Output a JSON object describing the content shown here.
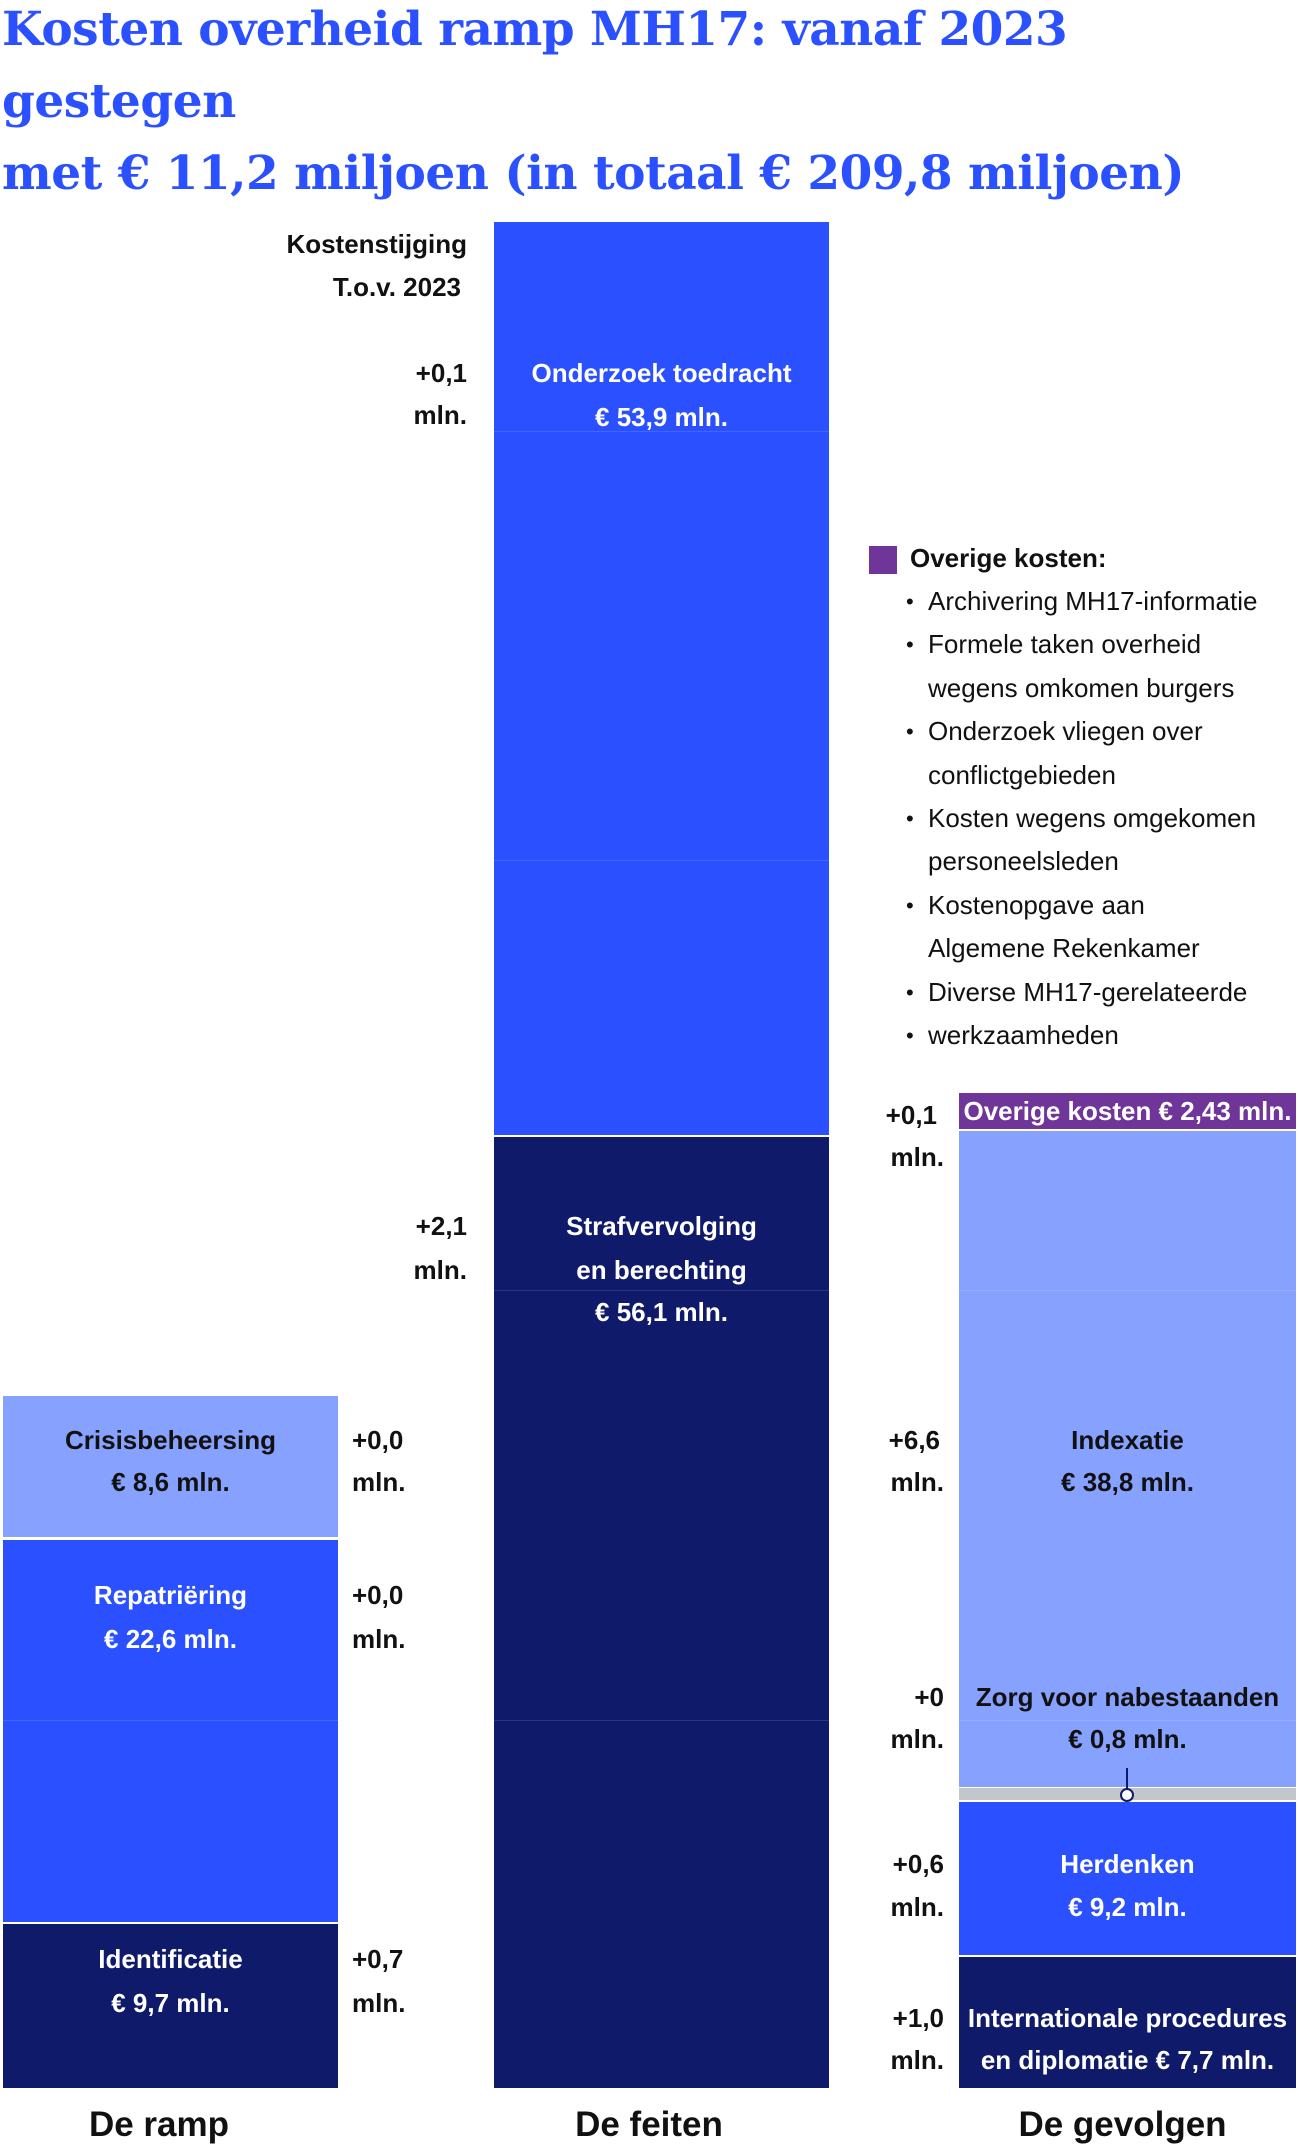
{
  "title": {
    "line1": "Kosten overheid ramp MH17: vanaf 2023 gestegen",
    "line2": "met € 11,2 miljoen (in totaal € 209,8 miljoen)"
  },
  "increase_header": {
    "line1": "Kostenstijging",
    "line2": "T.o.v. 2023"
  },
  "colors": {
    "title": "#2b50ff",
    "bright_blue": "#2b50ff",
    "navy": "#101a6b",
    "light_blue": "#87a1ff",
    "purple": "#6f3599",
    "gray": "#c3c7cb"
  },
  "chart_data": {
    "type": "bar",
    "subtype": "stacked",
    "unit": "mln. euro",
    "categories": [
      "De ramp",
      "De feiten",
      "De gevolgen"
    ],
    "columns": [
      {
        "name": "De ramp",
        "segments": [
          {
            "label": "Identificatie",
            "value_label": "€ 9,7 mln.",
            "value": 9.7,
            "increase": "+0,7",
            "unit": "mln.",
            "color": "#101a6b"
          },
          {
            "label": "Repatriëring",
            "value_label": "€ 22,6 mln.",
            "value": 22.6,
            "increase": "+0,0",
            "unit": "mln.",
            "color": "#2b50ff"
          },
          {
            "label": "Crisisbeheersing",
            "value_label": "€ 8,6 mln.",
            "value": 8.6,
            "increase": "+0,0",
            "unit": "mln.",
            "color": "#87a1ff"
          }
        ]
      },
      {
        "name": "De feiten",
        "segments": [
          {
            "label": "Strafvervolging",
            "label2": "en berechting",
            "value_label": "€ 56,1 mln.",
            "value": 56.1,
            "increase": "+2,1",
            "unit": "mln.",
            "color": "#101a6b"
          },
          {
            "label": "Onderzoek toedracht",
            "value_label": "€ 53,9 mln.",
            "value": 53.9,
            "increase": "+0,1",
            "unit": "mln.",
            "color": "#2b50ff"
          }
        ]
      },
      {
        "name": "De gevolgen",
        "segments": [
          {
            "label": "Internationale procedures",
            "label2": "en diplomatie € 7,7 mln.",
            "value": 7.7,
            "increase": "+1,0",
            "unit": "mln.",
            "color": "#101a6b"
          },
          {
            "label": "Herdenken",
            "value_label": "€ 9,2 mln.",
            "value": 9.2,
            "increase": "+0,6",
            "unit": "mln.",
            "color": "#2b50ff"
          },
          {
            "label": "Zorg voor nabestaanden",
            "value_label": "€ 0,8 mln.",
            "value": 0.8,
            "increase": "+0",
            "unit": "mln.",
            "color": "#c3c7cb"
          },
          {
            "label": "Indexatie",
            "value_label": "€ 38,8 mln.",
            "value": 38.8,
            "increase": "+6,6",
            "unit": "mln.",
            "color": "#87a1ff"
          },
          {
            "label": "Overige kosten € 2,43 mln.",
            "value": 2.43,
            "increase": "+0,1",
            "unit": "mln.",
            "color": "#6f3599"
          }
        ]
      }
    ]
  },
  "legend": {
    "title": "Overige kosten:",
    "items": [
      "Archivering MH17-informatie",
      "Formele taken overheid",
      "wegens omkomen burgers",
      "Onderzoek vliegen over",
      "conflictgebieden",
      "Kosten wegens omgekomen",
      "personeelsleden",
      "Kostenopgave aan",
      "Algemene Rekenkamer",
      "Diverse MH17-gerelateerde",
      "werkzaamheden"
    ],
    "bullets": [
      true,
      true,
      false,
      true,
      false,
      true,
      false,
      true,
      false,
      true,
      true
    ]
  }
}
